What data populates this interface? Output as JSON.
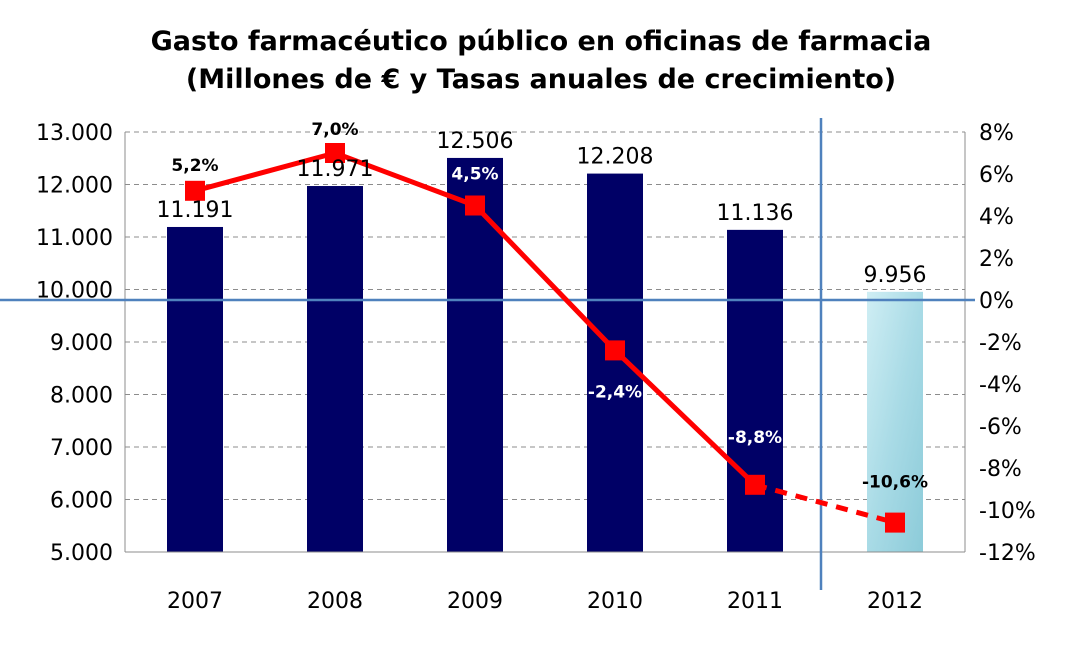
{
  "chart_data": {
    "type": "bar",
    "title": "Gasto farmacéutico público en oficinas de farmacia",
    "subtitle": "(Millones de € y Tasas anuales de crecimiento)",
    "categories": [
      "2007",
      "2008",
      "2009",
      "2010",
      "2011",
      "2012"
    ],
    "series": [
      {
        "type": "bar",
        "axis": "left",
        "values": [
          11191,
          11971,
          12506,
          12208,
          11136,
          9956
        ],
        "value_labels": [
          "11.191",
          "11.971",
          "12.506",
          "12.208",
          "11.136",
          "9.956"
        ],
        "color": "#000066",
        "projected_color": "#a9dbe6"
      },
      {
        "type": "line",
        "axis": "right",
        "values": [
          5.2,
          7.0,
          4.5,
          -2.4,
          -8.8,
          -10.6
        ],
        "value_labels": [
          "5,2%",
          "7,0%",
          "4,5%",
          "-2,4%",
          "-8,8%",
          "-10,6%"
        ],
        "color": "#ff0000",
        "dashed_segment": "2011-2012"
      }
    ],
    "ylim_left": [
      5000,
      13000
    ],
    "yticks_left": [
      "5.000",
      "6.000",
      "7.000",
      "8.000",
      "9.000",
      "10.000",
      "11.000",
      "12.000",
      "13.000"
    ],
    "ylim_right": [
      -12,
      8
    ],
    "yticks_right": [
      "-12%",
      "-10%",
      "-8%",
      "-6%",
      "-4%",
      "-2%",
      "0%",
      "2%",
      "4%",
      "6%",
      "8%"
    ],
    "grid": "dashed horizontal",
    "reference_line_zero_color": "#4f81bd",
    "separator_after_category": "2011",
    "legend": "none"
  }
}
